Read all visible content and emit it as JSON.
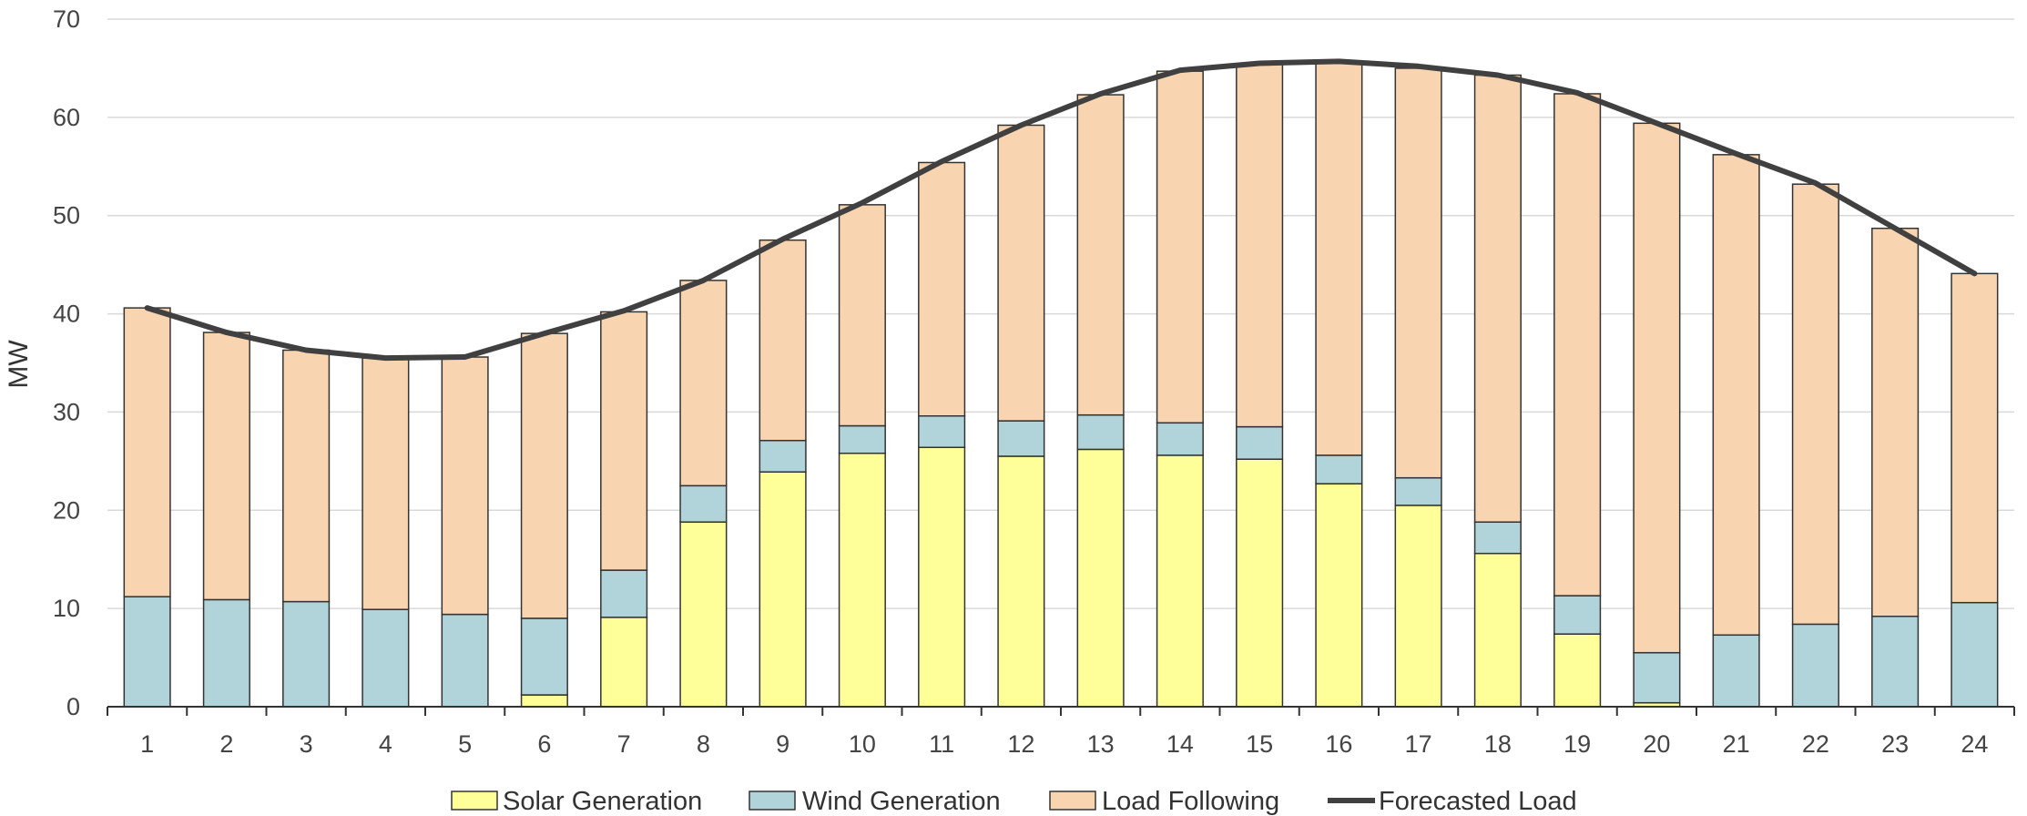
{
  "chart_data": {
    "type": "bar",
    "stacked": true,
    "title": "",
    "xlabel": "",
    "ylabel": "MW",
    "ylim": [
      0,
      70
    ],
    "yticks": [
      0,
      10,
      20,
      30,
      40,
      50,
      60,
      70
    ],
    "grid": true,
    "legend_position": "bottom",
    "categories": [
      "1",
      "2",
      "3",
      "4",
      "5",
      "6",
      "7",
      "8",
      "9",
      "10",
      "11",
      "12",
      "13",
      "14",
      "15",
      "16",
      "17",
      "18",
      "19",
      "20",
      "21",
      "22",
      "23",
      "24"
    ],
    "series": [
      {
        "name": "Solar Generation",
        "kind": "bar",
        "color": "#FFFF99",
        "values": [
          0,
          0,
          0,
          0,
          0,
          1.2,
          9.1,
          18.8,
          23.9,
          25.8,
          26.4,
          25.5,
          26.2,
          25.6,
          25.2,
          22.7,
          20.5,
          15.6,
          7.4,
          0.4,
          0,
          0,
          0,
          0
        ]
      },
      {
        "name": "Wind Generation",
        "kind": "bar",
        "color": "#B0D4DA",
        "values": [
          11.2,
          10.9,
          10.7,
          9.9,
          9.4,
          7.8,
          4.8,
          3.7,
          3.2,
          2.8,
          3.2,
          3.6,
          3.5,
          3.3,
          3.3,
          2.9,
          2.8,
          3.2,
          3.9,
          5.1,
          7.3,
          8.4,
          9.2,
          10.6
        ]
      },
      {
        "name": "Load Following",
        "kind": "bar",
        "color": "#F8D5B0",
        "values": [
          29.4,
          27.2,
          25.6,
          25.6,
          26.2,
          29.0,
          26.3,
          20.9,
          20.4,
          22.5,
          25.8,
          30.1,
          32.6,
          35.8,
          36.9,
          40.1,
          41.7,
          45.5,
          51.1,
          53.9,
          48.9,
          44.8,
          39.5,
          33.5
        ]
      },
      {
        "name": "Forecasted Load",
        "kind": "line",
        "color": "#404040",
        "values": [
          40.6,
          38.1,
          36.3,
          35.5,
          35.6,
          38.0,
          40.3,
          43.4,
          47.6,
          51.3,
          55.5,
          59.2,
          62.4,
          64.8,
          65.5,
          65.7,
          65.2,
          64.3,
          62.5,
          59.4,
          56.3,
          53.3,
          48.7,
          44.1
        ]
      }
    ]
  }
}
